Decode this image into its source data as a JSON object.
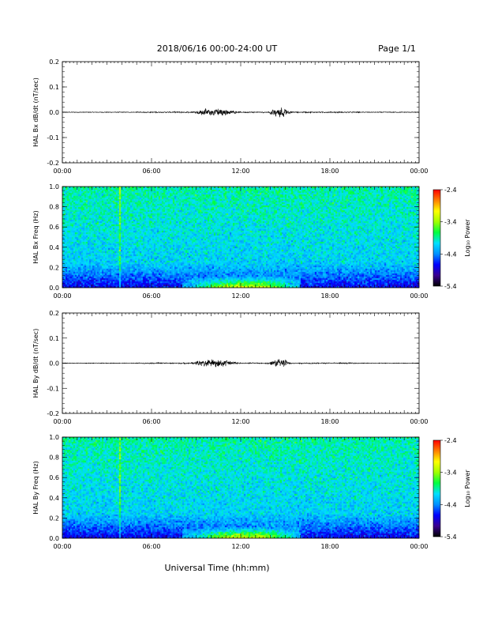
{
  "header": {
    "title": "2018/06/16  00:00-24:00 UT",
    "page": "Page 1/1"
  },
  "xaxis": {
    "label": "Universal Time (hh:mm)",
    "ticks": [
      "00:00",
      "06:00",
      "12:00",
      "18:00",
      "00:00"
    ]
  },
  "colorbar": {
    "label": "Log₁₀ Power",
    "ticks": [
      "-2.4",
      "-3.4",
      "-4.4",
      "-5.4"
    ],
    "stops": [
      "#000000",
      "#3a0090",
      "#0000ff",
      "#0090ff",
      "#00e0ff",
      "#00ff40",
      "#a0ff00",
      "#ffff00",
      "#ff8000",
      "#ff0000"
    ]
  },
  "chart_data": [
    {
      "type": "line",
      "ylabel": "HAL Bx dB/dt (nT/sec)",
      "xlim_hours": [
        0,
        24
      ],
      "ylim": [
        -0.2,
        0.2
      ],
      "yticks": [
        "0.2",
        "0.1",
        "0.0",
        "-0.1",
        "-0.2"
      ],
      "activity_bursts": [
        {
          "start_h": 8.5,
          "end_h": 12.0,
          "amplitude": 0.012
        },
        {
          "start_h": 13.8,
          "end_h": 15.5,
          "amplitude": 0.015
        }
      ]
    },
    {
      "type": "heatmap",
      "ylabel": "HAL Bx Freq (Hz)",
      "xlim_hours": [
        0,
        24
      ],
      "ylim": [
        0,
        1.0
      ],
      "yticks": [
        "1.0",
        "0.8",
        "0.6",
        "0.4",
        "0.2",
        "0.0"
      ],
      "zlim": [
        -5.4,
        -2.4
      ],
      "enhancement": {
        "start_h": 8,
        "end_h": 16,
        "max_freq_hz": 0.1
      }
    },
    {
      "type": "line",
      "ylabel": "HAL By dB/dt (nT/sec)",
      "xlim_hours": [
        0,
        24
      ],
      "ylim": [
        -0.2,
        0.2
      ],
      "yticks": [
        "0.2",
        "0.1",
        "0.0",
        "-0.1",
        "-0.2"
      ],
      "activity_bursts": [
        {
          "start_h": 8.5,
          "end_h": 12.0,
          "amplitude": 0.012
        },
        {
          "start_h": 13.8,
          "end_h": 15.5,
          "amplitude": 0.015
        }
      ]
    },
    {
      "type": "heatmap",
      "ylabel": "HAL By Freq (Hz)",
      "xlim_hours": [
        0,
        24
      ],
      "ylim": [
        0,
        1.0
      ],
      "yticks": [
        "1.0",
        "0.8",
        "0.6",
        "0.4",
        "0.2",
        "0.0"
      ],
      "zlim": [
        -5.4,
        -2.4
      ],
      "enhancement": {
        "start_h": 8,
        "end_h": 16,
        "max_freq_hz": 0.1
      }
    }
  ]
}
